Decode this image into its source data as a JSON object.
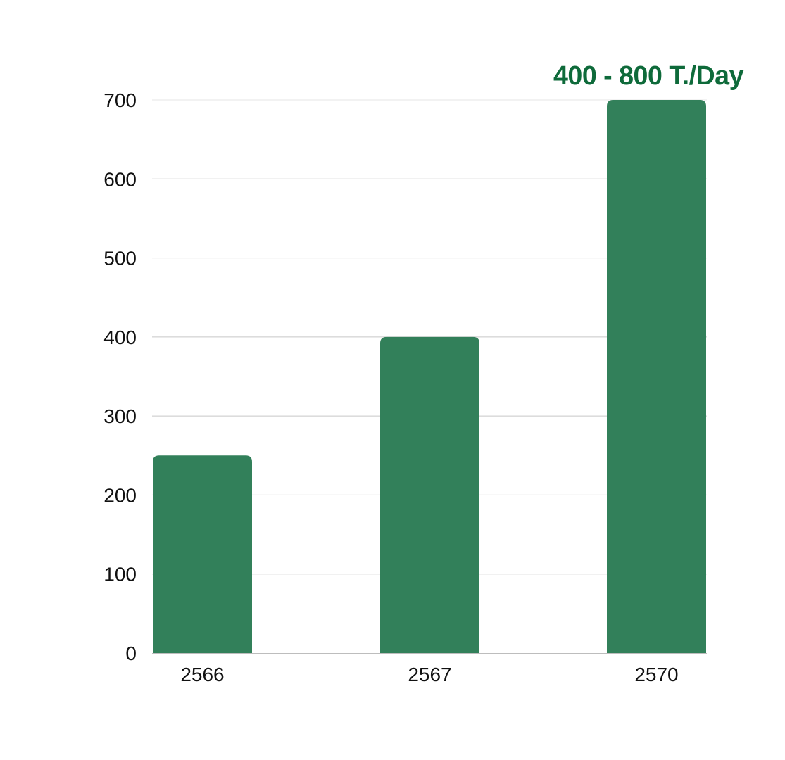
{
  "chart_data": {
    "type": "bar",
    "categories": [
      "2566",
      "2567",
      "2570"
    ],
    "values": [
      250,
      400,
      700
    ],
    "title": "",
    "xlabel": "",
    "ylabel": "",
    "ylim": [
      0,
      700
    ],
    "yticks": [
      "0",
      "100",
      "200",
      "300",
      "400",
      "500",
      "600",
      "700"
    ],
    "grid": true,
    "legend": "none",
    "bar_color": "#32805a",
    "grid_color": "#c8c8c8",
    "annotation": {
      "text": "400 - 800  T./Day",
      "color": "#0e6a3a",
      "anchor_category": "2570"
    }
  }
}
